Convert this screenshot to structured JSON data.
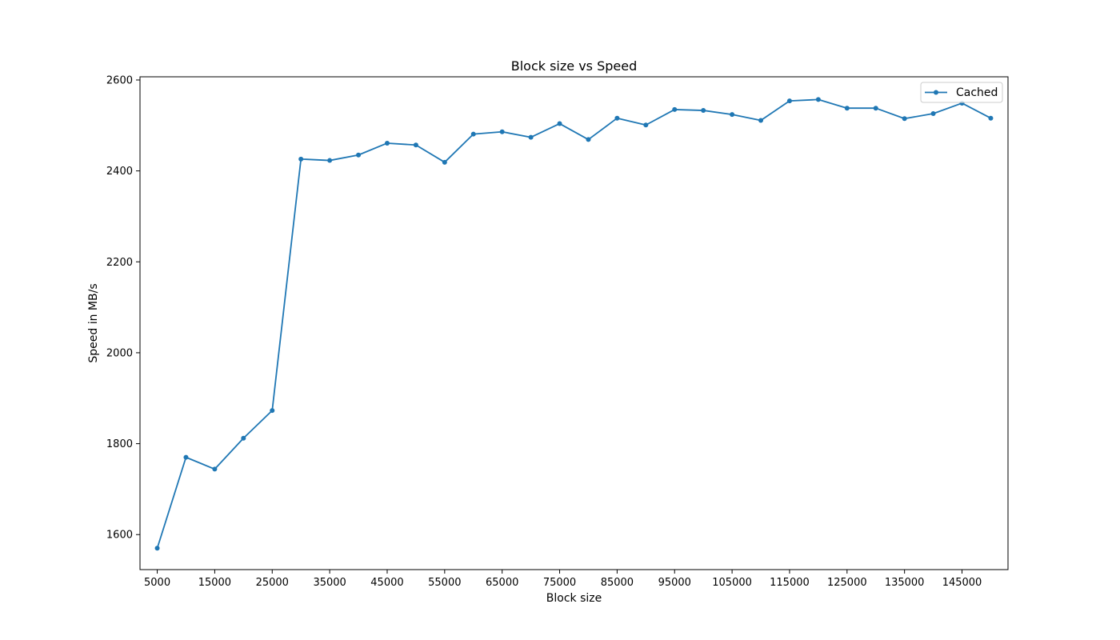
{
  "chart_data": {
    "type": "line",
    "title": "Block size vs Speed",
    "xlabel": "Block size",
    "ylabel": "Speed in MB/s",
    "xlim": [
      2000,
      153000
    ],
    "ylim": [
      1523,
      2607
    ],
    "xticks": [
      5000,
      15000,
      25000,
      35000,
      45000,
      55000,
      65000,
      75000,
      85000,
      95000,
      105000,
      115000,
      125000,
      135000,
      145000
    ],
    "yticks": [
      1600,
      1800,
      2000,
      2200,
      2400,
      2600
    ],
    "grid": false,
    "legend_position": "top-right",
    "color": "#1f77b4",
    "series": [
      {
        "name": "Cached",
        "x": [
          5000,
          10000,
          15000,
          20000,
          25000,
          30000,
          35000,
          40000,
          45000,
          50000,
          55000,
          60000,
          65000,
          70000,
          75000,
          80000,
          85000,
          90000,
          95000,
          100000,
          105000,
          110000,
          115000,
          120000,
          125000,
          130000,
          135000,
          140000,
          145000,
          150000
        ],
        "y": [
          1570,
          1770,
          1744,
          1812,
          1873,
          2426,
          2423,
          2435,
          2461,
          2457,
          2419,
          2481,
          2486,
          2474,
          2504,
          2469,
          2516,
          2501,
          2535,
          2533,
          2524,
          2511,
          2554,
          2557,
          2538,
          2538,
          2515,
          2526,
          2549,
          2516
        ]
      }
    ]
  }
}
